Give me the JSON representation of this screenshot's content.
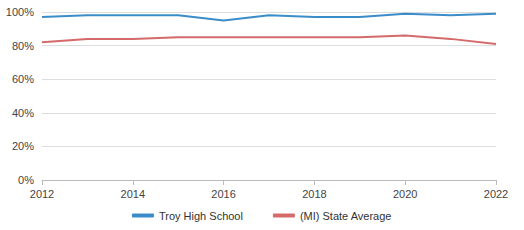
{
  "chart_data": {
    "type": "line",
    "x": [
      2012,
      2013,
      2014,
      2015,
      2016,
      2017,
      2018,
      2019,
      2020,
      2021,
      2022
    ],
    "series": [
      {
        "name": "Troy High School",
        "color": "#3a8dc8",
        "values": [
          97,
          98,
          98,
          98,
          95,
          98,
          97,
          97,
          99,
          98,
          99
        ]
      },
      {
        "name": "(MI) State Average",
        "color": "#d46a6a",
        "values": [
          82,
          84,
          84,
          85,
          85,
          85,
          85,
          85,
          86,
          84,
          81
        ]
      }
    ],
    "xlim": [
      2012,
      2022
    ],
    "xticks": [
      2012,
      2014,
      2016,
      2018,
      2020,
      2022
    ],
    "ylim": [
      0,
      100
    ],
    "yticks": [
      {
        "value": 0,
        "label": "0%"
      },
      {
        "value": 20,
        "label": "20%"
      },
      {
        "value": 40,
        "label": "40%"
      },
      {
        "value": 60,
        "label": "60%"
      },
      {
        "value": 80,
        "label": "80%"
      },
      {
        "value": 100,
        "label": "100%"
      }
    ],
    "grid": true,
    "legend": "bottom"
  }
}
